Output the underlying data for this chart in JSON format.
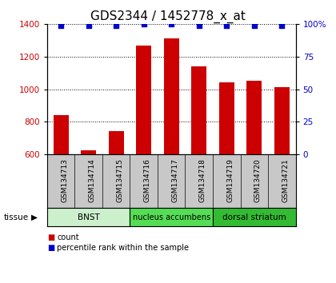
{
  "title": "GDS2344 / 1452778_x_at",
  "samples": [
    "GSM134713",
    "GSM134714",
    "GSM134715",
    "GSM134716",
    "GSM134717",
    "GSM134718",
    "GSM134719",
    "GSM134720",
    "GSM134721"
  ],
  "counts": [
    840,
    622,
    740,
    1270,
    1310,
    1140,
    1040,
    1050,
    1010
  ],
  "percentile_ranks": [
    99,
    99,
    99,
    100,
    100,
    99,
    99,
    99,
    99
  ],
  "ylim_left": [
    600,
    1400
  ],
  "ylim_right": [
    0,
    100
  ],
  "yticks_left": [
    600,
    800,
    1000,
    1200,
    1400
  ],
  "yticks_right": [
    0,
    25,
    50,
    75,
    100
  ],
  "ytick_labels_right": [
    "0",
    "25",
    "50",
    "75",
    "100%"
  ],
  "bar_color": "#cc0000",
  "dot_color": "#0000cc",
  "grid_color": "#000000",
  "tissue_groups": [
    {
      "label": "BNST",
      "start": 0,
      "end": 3,
      "color": "#ccf0cc"
    },
    {
      "label": "nucleus accumbens",
      "start": 3,
      "end": 6,
      "color": "#55dd55"
    },
    {
      "label": "dorsal striatum",
      "start": 6,
      "end": 9,
      "color": "#33bb33"
    }
  ],
  "tissue_label": "tissue",
  "legend_count_label": "count",
  "legend_pct_label": "percentile rank within the sample",
  "bar_width": 0.55,
  "tick_area_color": "#c8c8c8",
  "title_fontsize": 11,
  "tick_fontsize": 7.5
}
